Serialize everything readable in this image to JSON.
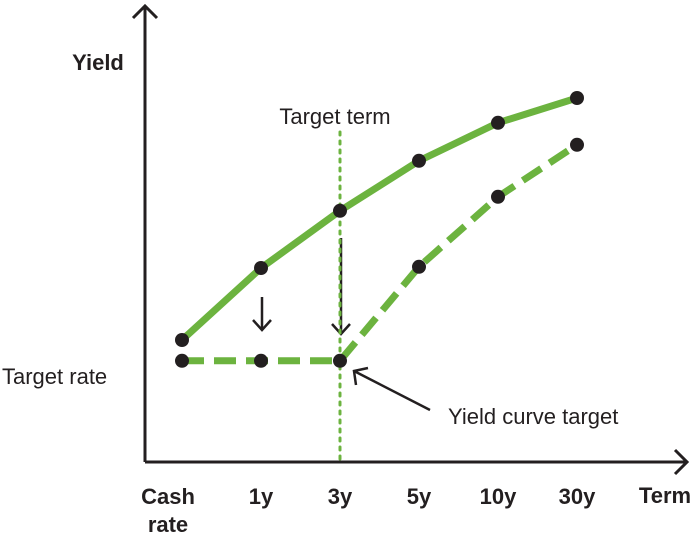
{
  "chart_data": {
    "type": "line",
    "y_label": "Yield",
    "x_label": "Term",
    "categories": [
      "Cash rate",
      "1y",
      "3y",
      "5y",
      "10y",
      "30y"
    ],
    "ylim": [
      0,
      100
    ],
    "series": [
      {
        "color": "#6cb33f",
        "line_style": "solid",
        "values": [
          30.5,
          48.5,
          62.8,
          75.3,
          84.8,
          91
        ]
      },
      {
        "color": "#6cb33f",
        "line_style": "dashed",
        "values": [
          25.3,
          25.3,
          25.3,
          48.8,
          66.3,
          79.3
        ]
      }
    ],
    "target_term": {
      "label": "Target term",
      "category": "3y"
    },
    "target_rate": {
      "label": "Target rate"
    },
    "yield_curve_target": {
      "label": "Yield curve target"
    }
  }
}
